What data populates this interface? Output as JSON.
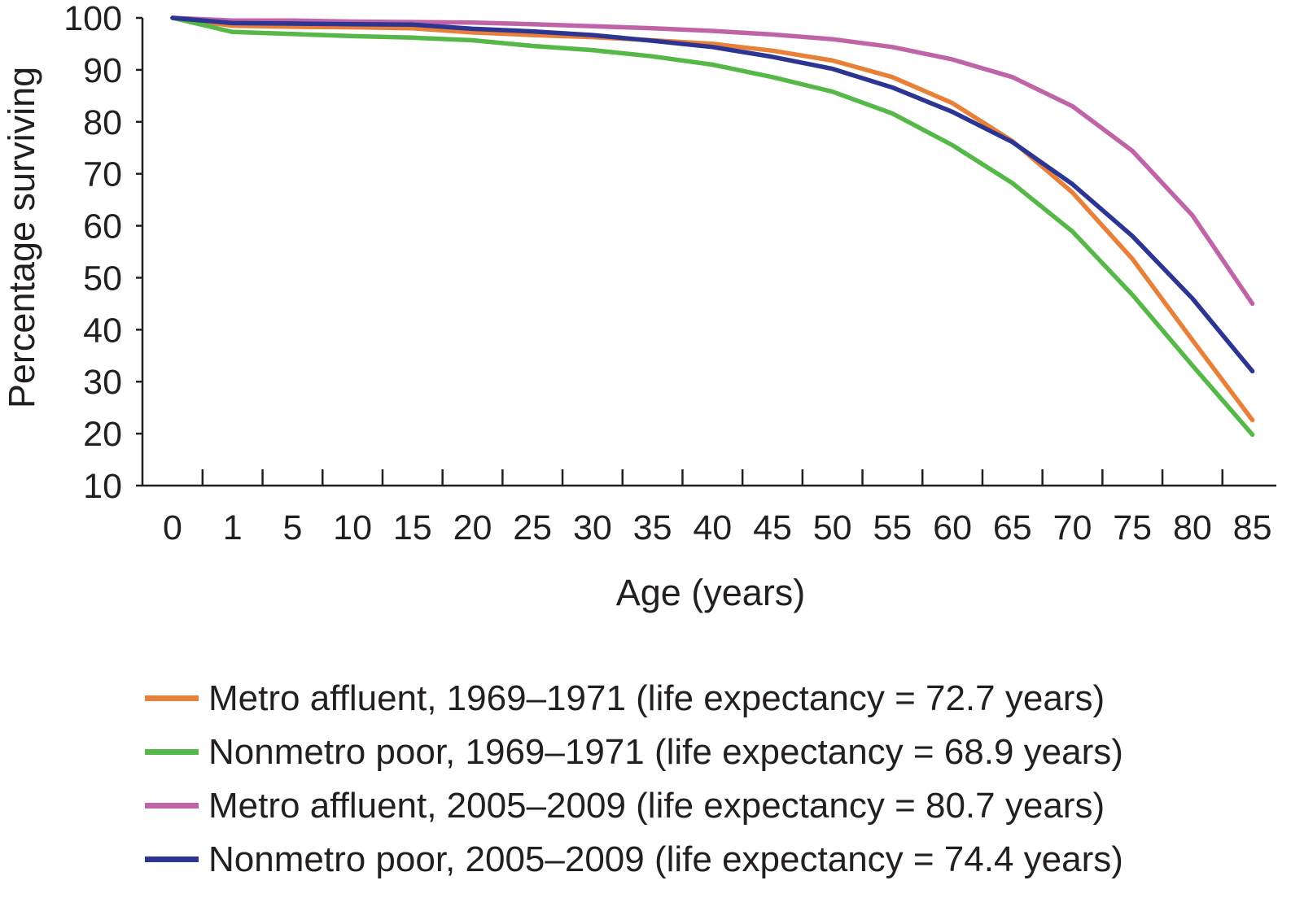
{
  "chart_data": {
    "type": "line",
    "title": "",
    "xlabel": "Age (years)",
    "ylabel": "Percentage surviving",
    "categories": [
      "0",
      "1",
      "5",
      "10",
      "15",
      "20",
      "25",
      "30",
      "35",
      "40",
      "45",
      "50",
      "55",
      "60",
      "65",
      "70",
      "75",
      "80",
      "85"
    ],
    "yticks": [
      "100",
      "90",
      "80",
      "70",
      "60",
      "50",
      "40",
      "30",
      "20",
      "10"
    ],
    "ylim": [
      10,
      100
    ],
    "grid": false,
    "legend_position": "bottom",
    "series": [
      {
        "name": "Metro affluent, 1969–1971 (life expectancy = 72.7 years)",
        "color": "#e8803a",
        "values": [
          100,
          98.5,
          98.3,
          98.2,
          98.0,
          97.2,
          96.7,
          96.3,
          95.7,
          95.0,
          93.7,
          91.8,
          88.6,
          83.6,
          76.3,
          66.4,
          53.6,
          38.0,
          22.6
        ]
      },
      {
        "name": "Nonmetro poor, 1969–1971 (life expectancy = 68.9 years)",
        "color": "#55b848",
        "values": [
          100,
          97.3,
          96.9,
          96.5,
          96.2,
          95.7,
          94.6,
          93.8,
          92.6,
          91.0,
          88.6,
          85.8,
          81.6,
          75.5,
          68.2,
          58.9,
          46.7,
          33.1,
          19.8
        ]
      },
      {
        "name": "Metro affluent, 2005–2009 (life expectancy = 80.7 years)",
        "color": "#c064a8",
        "values": [
          100,
          99.5,
          99.5,
          99.3,
          99.2,
          99.1,
          98.8,
          98.4,
          98.0,
          97.5,
          96.8,
          95.9,
          94.4,
          92.0,
          88.6,
          83.0,
          74.4,
          62.0,
          45.0
        ]
      },
      {
        "name": " Nonmetro poor, 2005–2009 (life expectancy = 74.4 years)",
        "color": "#2c3591",
        "values": [
          100,
          99.0,
          98.9,
          98.8,
          98.7,
          97.9,
          97.4,
          96.7,
          95.6,
          94.4,
          92.5,
          90.2,
          86.6,
          81.9,
          76.1,
          68.0,
          58.0,
          46.0,
          32.0
        ]
      }
    ]
  }
}
